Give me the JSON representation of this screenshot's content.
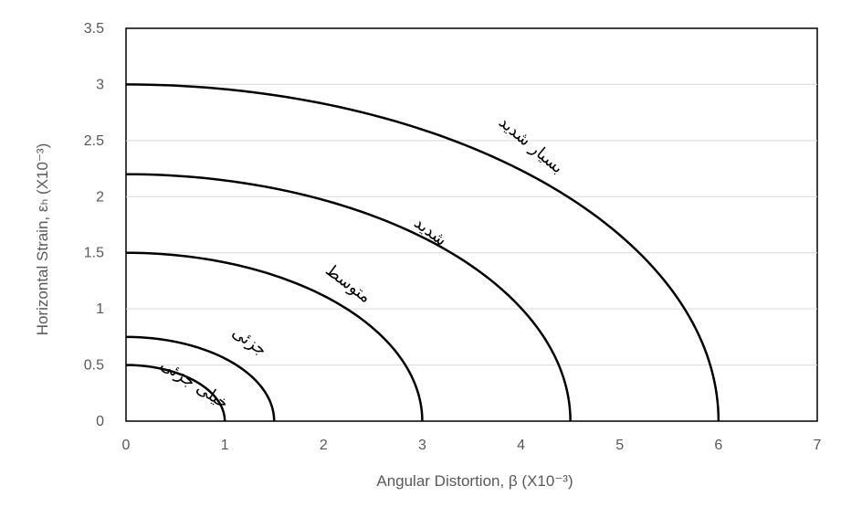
{
  "chart_data": {
    "type": "line",
    "xlabel": "Angular Distortion, β (X10⁻³)",
    "ylabel": "Horizontal Strain, εₕ (X10⁻³)",
    "xlim": [
      0,
      7
    ],
    "ylim": [
      0,
      3.5
    ],
    "x_ticks": [
      "0",
      "1",
      "2",
      "3",
      "4",
      "5",
      "6",
      "7"
    ],
    "y_ticks": [
      "0",
      "0.5",
      "1",
      "1.5",
      "2",
      "2.5",
      "3",
      "3.5"
    ],
    "grid": "horizontal",
    "series": [
      {
        "name": "خیلی جزئی",
        "x_intercept": 1.0,
        "y_intercept": 0.5
      },
      {
        "name": "جزئی",
        "x_intercept": 1.5,
        "y_intercept": 0.75
      },
      {
        "name": "متوسط",
        "x_intercept": 3.0,
        "y_intercept": 1.5
      },
      {
        "name": "شدید",
        "x_intercept": 4.5,
        "y_intercept": 2.2
      },
      {
        "name": "بسیار شدید",
        "x_intercept": 6.0,
        "y_intercept": 3.0
      }
    ],
    "colors": {
      "line": "#000000",
      "grid": "#d9d9d9",
      "axis": "#000000",
      "text": "#595959"
    }
  }
}
